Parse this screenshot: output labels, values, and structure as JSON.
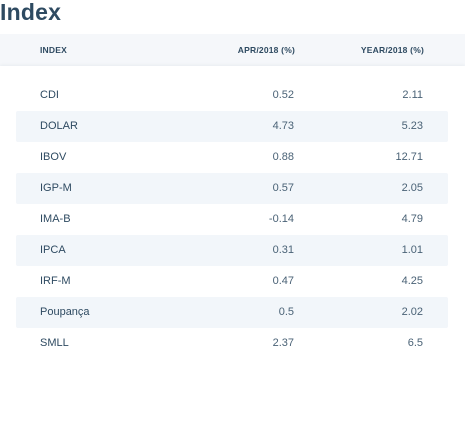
{
  "title": "Index",
  "columns": {
    "index": "INDEX",
    "apr": "APR/2018 (%)",
    "year": "YEAR/2018 (%)"
  },
  "rows": [
    {
      "name": "CDI",
      "apr": "0.52",
      "year": "2.11"
    },
    {
      "name": "DOLAR",
      "apr": "4.73",
      "year": "5.23"
    },
    {
      "name": "IBOV",
      "apr": "0.88",
      "year": "12.71"
    },
    {
      "name": "IGP-M",
      "apr": "0.57",
      "year": "2.05"
    },
    {
      "name": "IMA-B",
      "apr": "-0.14",
      "year": "4.79"
    },
    {
      "name": "IPCA",
      "apr": "0.31",
      "year": "1.01"
    },
    {
      "name": "IRF-M",
      "apr": "0.47",
      "year": "4.25"
    },
    {
      "name": "Poupança",
      "apr": "0.5",
      "year": "2.02"
    },
    {
      "name": "SMLL",
      "apr": "2.37",
      "year": "6.5"
    }
  ],
  "colors": {
    "text": "#2e4a61",
    "header_bg": "#f5f7fa",
    "stripe_bg": "#f2f6fa"
  }
}
